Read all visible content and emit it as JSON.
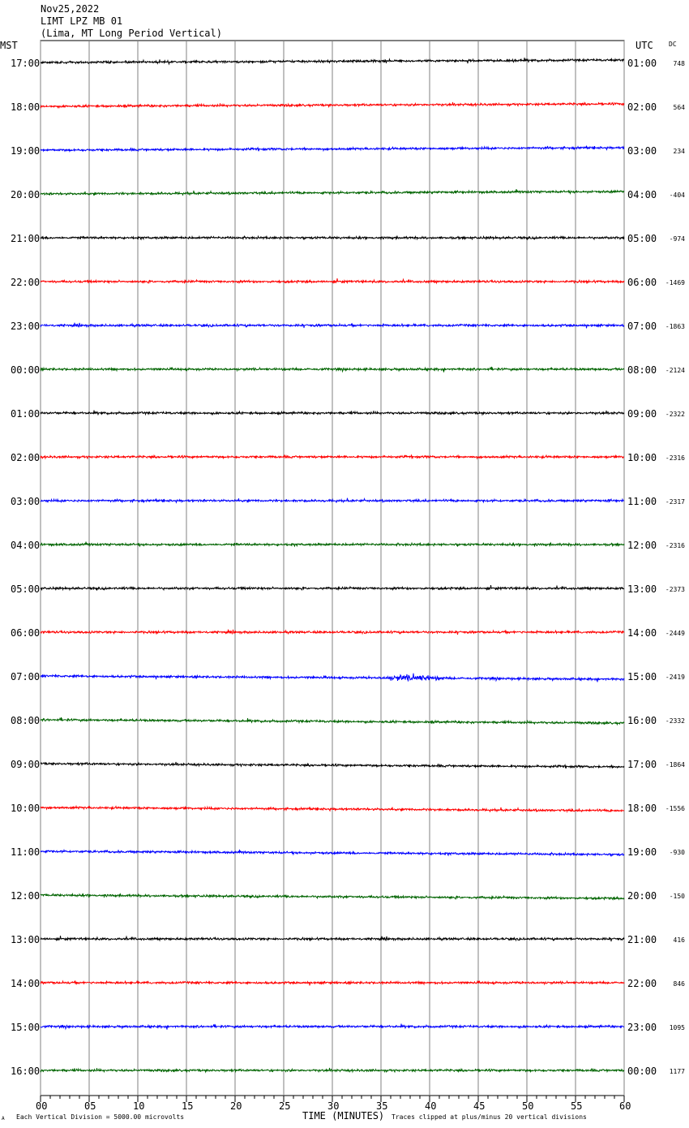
{
  "header": {
    "date": "Nov25,2022",
    "station": "LIMT LPZ MB 01",
    "location": "(Lima, MT Long Period Vertical)"
  },
  "footer": {
    "scale_note": "Each Vertical Division = 5000.00 microvolts",
    "clip_note": "Traces clipped at plus/minus 20 vertical divisions",
    "corner_mark": "A"
  },
  "chart_data": {
    "type": "line",
    "title": "LIMT LPZ MB 01",
    "left_axis_label": "MST",
    "right_axis_label": "UTC",
    "dc_label": "DC",
    "xlabel": "TIME (MINUTES)",
    "xlim": [
      0,
      60
    ],
    "x_ticks": [
      "00",
      "05",
      "10",
      "15",
      "20",
      "25",
      "30",
      "35",
      "40",
      "45",
      "50",
      "55",
      "60"
    ],
    "x_tick_values": [
      0,
      5,
      10,
      15,
      20,
      25,
      30,
      35,
      40,
      45,
      50,
      55,
      60
    ],
    "grid": true,
    "trace_colors": [
      "#000000",
      "#ff0000",
      "#0000ff",
      "#006400"
    ],
    "rows": [
      {
        "mst": "17:00",
        "utc": "01:00",
        "dc": "748"
      },
      {
        "mst": "18:00",
        "utc": "02:00",
        "dc": "564"
      },
      {
        "mst": "19:00",
        "utc": "03:00",
        "dc": "234"
      },
      {
        "mst": "20:00",
        "utc": "04:00",
        "dc": "-404"
      },
      {
        "mst": "21:00",
        "utc": "05:00",
        "dc": "-974"
      },
      {
        "mst": "22:00",
        "utc": "06:00",
        "dc": "-1469"
      },
      {
        "mst": "23:00",
        "utc": "07:00",
        "dc": "-1863"
      },
      {
        "mst": "00:00",
        "utc": "08:00",
        "dc": "-2124"
      },
      {
        "mst": "01:00",
        "utc": "09:00",
        "dc": "-2322"
      },
      {
        "mst": "02:00",
        "utc": "10:00",
        "dc": "-2316"
      },
      {
        "mst": "03:00",
        "utc": "11:00",
        "dc": "-2317"
      },
      {
        "mst": "04:00",
        "utc": "12:00",
        "dc": "-2316"
      },
      {
        "mst": "05:00",
        "utc": "13:00",
        "dc": "-2373"
      },
      {
        "mst": "06:00",
        "utc": "14:00",
        "dc": "-2449"
      },
      {
        "mst": "07:00",
        "utc": "15:00",
        "dc": "-2419"
      },
      {
        "mst": "08:00",
        "utc": "16:00",
        "dc": "-2332"
      },
      {
        "mst": "09:00",
        "utc": "17:00",
        "dc": "-1864"
      },
      {
        "mst": "10:00",
        "utc": "18:00",
        "dc": "-1556"
      },
      {
        "mst": "11:00",
        "utc": "19:00",
        "dc": "-930"
      },
      {
        "mst": "12:00",
        "utc": "20:00",
        "dc": "-150"
      },
      {
        "mst": "13:00",
        "utc": "21:00",
        "dc": "416"
      },
      {
        "mst": "14:00",
        "utc": "22:00",
        "dc": "846"
      },
      {
        "mst": "15:00",
        "utc": "23:00",
        "dc": "1095"
      },
      {
        "mst": "16:00",
        "utc": "00:00",
        "dc": "1177"
      }
    ]
  }
}
